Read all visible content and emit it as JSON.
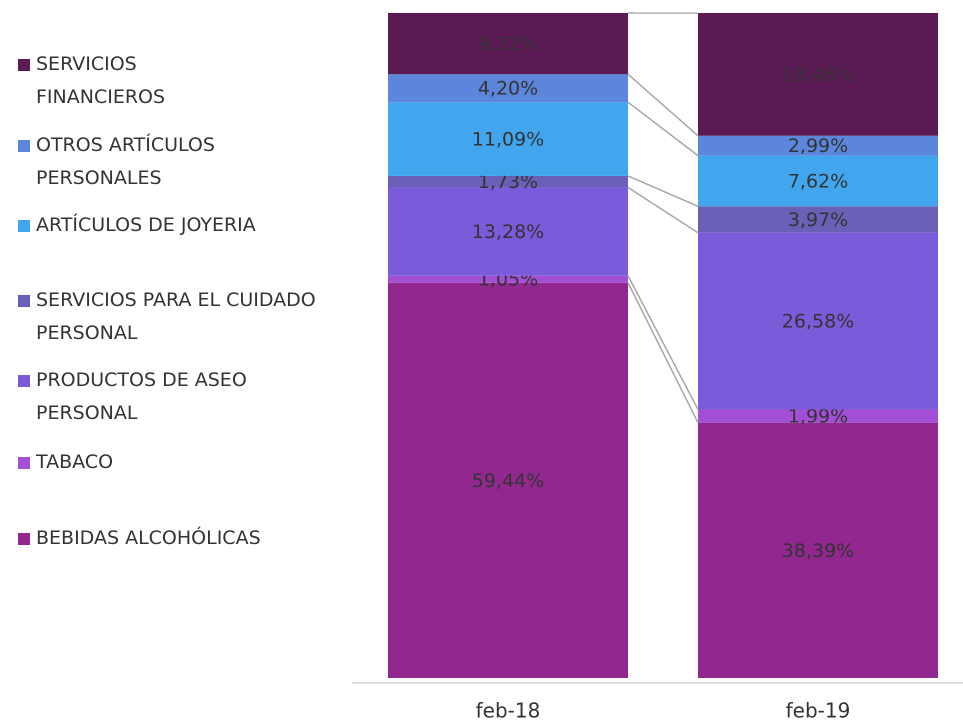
{
  "chart_data": {
    "type": "stacked_bar",
    "categories": [
      "feb-18",
      "feb-19"
    ],
    "ylim": [
      0,
      100
    ],
    "series": [
      {
        "name": "BEBIDAS ALCOHÓLICAS",
        "color": "#92278f",
        "values": [
          59.44,
          38.39
        ],
        "value_labels": [
          "59,44%",
          "38,39%"
        ]
      },
      {
        "name": "TABACO",
        "color": "#a24fd6",
        "values": [
          1.05,
          1.99
        ],
        "value_labels": [
          "1,05%",
          "1,99%"
        ]
      },
      {
        "name": "PRODUCTOS DE ASEO PERSONAL",
        "color": "#7a5bd9",
        "values": [
          13.28,
          26.58
        ],
        "value_labels": [
          "13,28%",
          "26,58%"
        ]
      },
      {
        "name": "SERVICIOS PARA EL CUIDADO PERSONAL",
        "color": "#6a60b8",
        "values": [
          1.73,
          3.97
        ],
        "value_labels": [
          "1,73%",
          "3,97%"
        ]
      },
      {
        "name": "ARTÍCULOS DE JOYERIA",
        "color": "#42a6ee",
        "values": [
          11.09,
          7.62
        ],
        "value_labels": [
          "11,09%",
          "7,62%"
        ]
      },
      {
        "name": "OTROS ARTÍCULOS PERSONALES",
        "color": "#5b86dc",
        "values": [
          4.2,
          2.99
        ],
        "value_labels": [
          "4,20%",
          "2,99%"
        ]
      },
      {
        "name": "SERVICIOS FINANCIEROS",
        "color": "#5c1a55",
        "values": [
          9.22,
          18.46
        ],
        "value_labels": [
          "9,22%",
          "18,46%"
        ]
      }
    ]
  }
}
